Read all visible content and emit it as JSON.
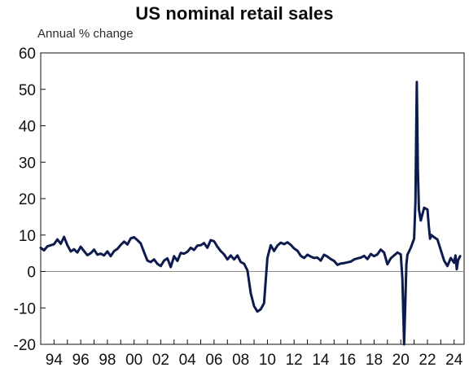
{
  "chart_data": {
    "type": "line",
    "title": "US nominal retail sales",
    "ylabel": "Annual % change",
    "xlabel": "",
    "ylim": [
      -20,
      60
    ],
    "xlim": [
      1993.0,
      2024.75
    ],
    "y_ticks": [
      "60",
      "50",
      "40",
      "30",
      "20",
      "10",
      "0",
      "-10",
      "-20"
    ],
    "y_tick_values": [
      60,
      50,
      40,
      30,
      20,
      10,
      0,
      -10,
      -20
    ],
    "x_ticks": [
      "94",
      "96",
      "98",
      "00",
      "02",
      "04",
      "06",
      "08",
      "10",
      "12",
      "14",
      "16",
      "18",
      "20",
      "22",
      "24"
    ],
    "x_tick_values": [
      1994,
      1996,
      1998,
      2000,
      2002,
      2004,
      2006,
      2008,
      2010,
      2012,
      2014,
      2016,
      2018,
      2020,
      2022,
      2024
    ],
    "zero_line": true,
    "grid": false,
    "legend": "none",
    "line_color": "#0d1a4d",
    "series": [
      {
        "x": [
          1993.0,
          1993.25,
          1993.5,
          1993.75,
          1994.0,
          1994.25,
          1994.5,
          1994.75,
          1995.0,
          1995.25,
          1995.5,
          1995.75,
          1996.0,
          1996.25,
          1996.5,
          1996.75,
          1997.0,
          1997.25,
          1997.5,
          1997.75,
          1998.0,
          1998.25,
          1998.5,
          1998.75,
          1999.0,
          1999.25,
          1999.5,
          1999.75,
          2000.0,
          2000.25,
          2000.5,
          2000.75,
          2001.0,
          2001.25,
          2001.5,
          2001.75,
          2002.0,
          2002.25,
          2002.5,
          2002.75,
          2003.0,
          2003.25,
          2003.5,
          2003.75,
          2004.0,
          2004.25,
          2004.5,
          2004.75,
          2005.0,
          2005.25,
          2005.5,
          2005.75,
          2006.0,
          2006.25,
          2006.5,
          2006.75,
          2007.0,
          2007.25,
          2007.5,
          2007.75,
          2008.0,
          2008.25,
          2008.5,
          2008.75,
          2009.0,
          2009.25,
          2009.5,
          2009.75,
          2010.0,
          2010.25,
          2010.5,
          2010.75,
          2011.0,
          2011.25,
          2011.5,
          2011.75,
          2012.0,
          2012.25,
          2012.5,
          2012.75,
          2013.0,
          2013.25,
          2013.5,
          2013.75,
          2014.0,
          2014.25,
          2014.5,
          2014.75,
          2015.0,
          2015.25,
          2015.5,
          2015.75,
          2016.0,
          2016.25,
          2016.5,
          2016.75,
          2017.0,
          2017.25,
          2017.5,
          2017.75,
          2018.0,
          2018.25,
          2018.5,
          2018.75,
          2019.0,
          2019.25,
          2019.5,
          2019.75,
          2020.0,
          2020.12,
          2020.25,
          2020.33,
          2020.42,
          2020.5,
          2020.75,
          2021.0,
          2021.1,
          2021.2,
          2021.28,
          2021.36,
          2021.5,
          2021.75,
          2022.0,
          2022.1,
          2022.2,
          2022.3,
          2022.5,
          2022.75,
          2023.0,
          2023.25,
          2023.5,
          2023.75,
          2024.0,
          2024.1,
          2024.2,
          2024.3,
          2024.45
        ],
        "values": [
          6.5,
          5.8,
          6.9,
          7.2,
          7.5,
          8.8,
          7.6,
          9.5,
          7.2,
          5.5,
          6.1,
          5.2,
          6.8,
          5.6,
          4.5,
          5.0,
          6.0,
          4.6,
          4.9,
          4.4,
          5.5,
          4.2,
          5.6,
          6.2,
          7.3,
          8.2,
          7.4,
          9.1,
          9.4,
          8.6,
          7.7,
          5.3,
          3.0,
          2.6,
          3.3,
          2.1,
          1.5,
          3.0,
          3.6,
          1.2,
          4.2,
          2.9,
          5.1,
          4.9,
          5.4,
          6.5,
          5.9,
          7.1,
          7.2,
          7.8,
          6.5,
          8.6,
          8.3,
          6.8,
          5.6,
          4.7,
          3.3,
          4.4,
          3.3,
          4.4,
          2.6,
          2.1,
          0.3,
          -6.0,
          -9.5,
          -11.0,
          -10.4,
          -8.7,
          3.7,
          7.2,
          5.6,
          7.1,
          7.9,
          7.5,
          8.0,
          7.3,
          6.3,
          5.7,
          4.3,
          3.7,
          4.6,
          4.1,
          3.7,
          3.8,
          3.0,
          4.6,
          4.1,
          3.4,
          2.9,
          1.8,
          2.2,
          2.3,
          2.5,
          2.7,
          3.3,
          3.6,
          3.8,
          4.3,
          3.4,
          4.8,
          4.2,
          4.7,
          6.0,
          5.2,
          2.0,
          3.6,
          4.4,
          5.2,
          4.7,
          -2.0,
          -20.0,
          -10.0,
          2.0,
          4.6,
          6.5,
          9.0,
          19.0,
          52.0,
          28.0,
          17.0,
          14.0,
          17.5,
          17.0,
          12.5,
          9.0,
          10.0,
          9.4,
          8.8,
          5.9,
          3.0,
          1.5,
          3.7,
          2.4,
          4.4,
          0.6,
          3.1,
          4.2
        ]
      }
    ]
  }
}
